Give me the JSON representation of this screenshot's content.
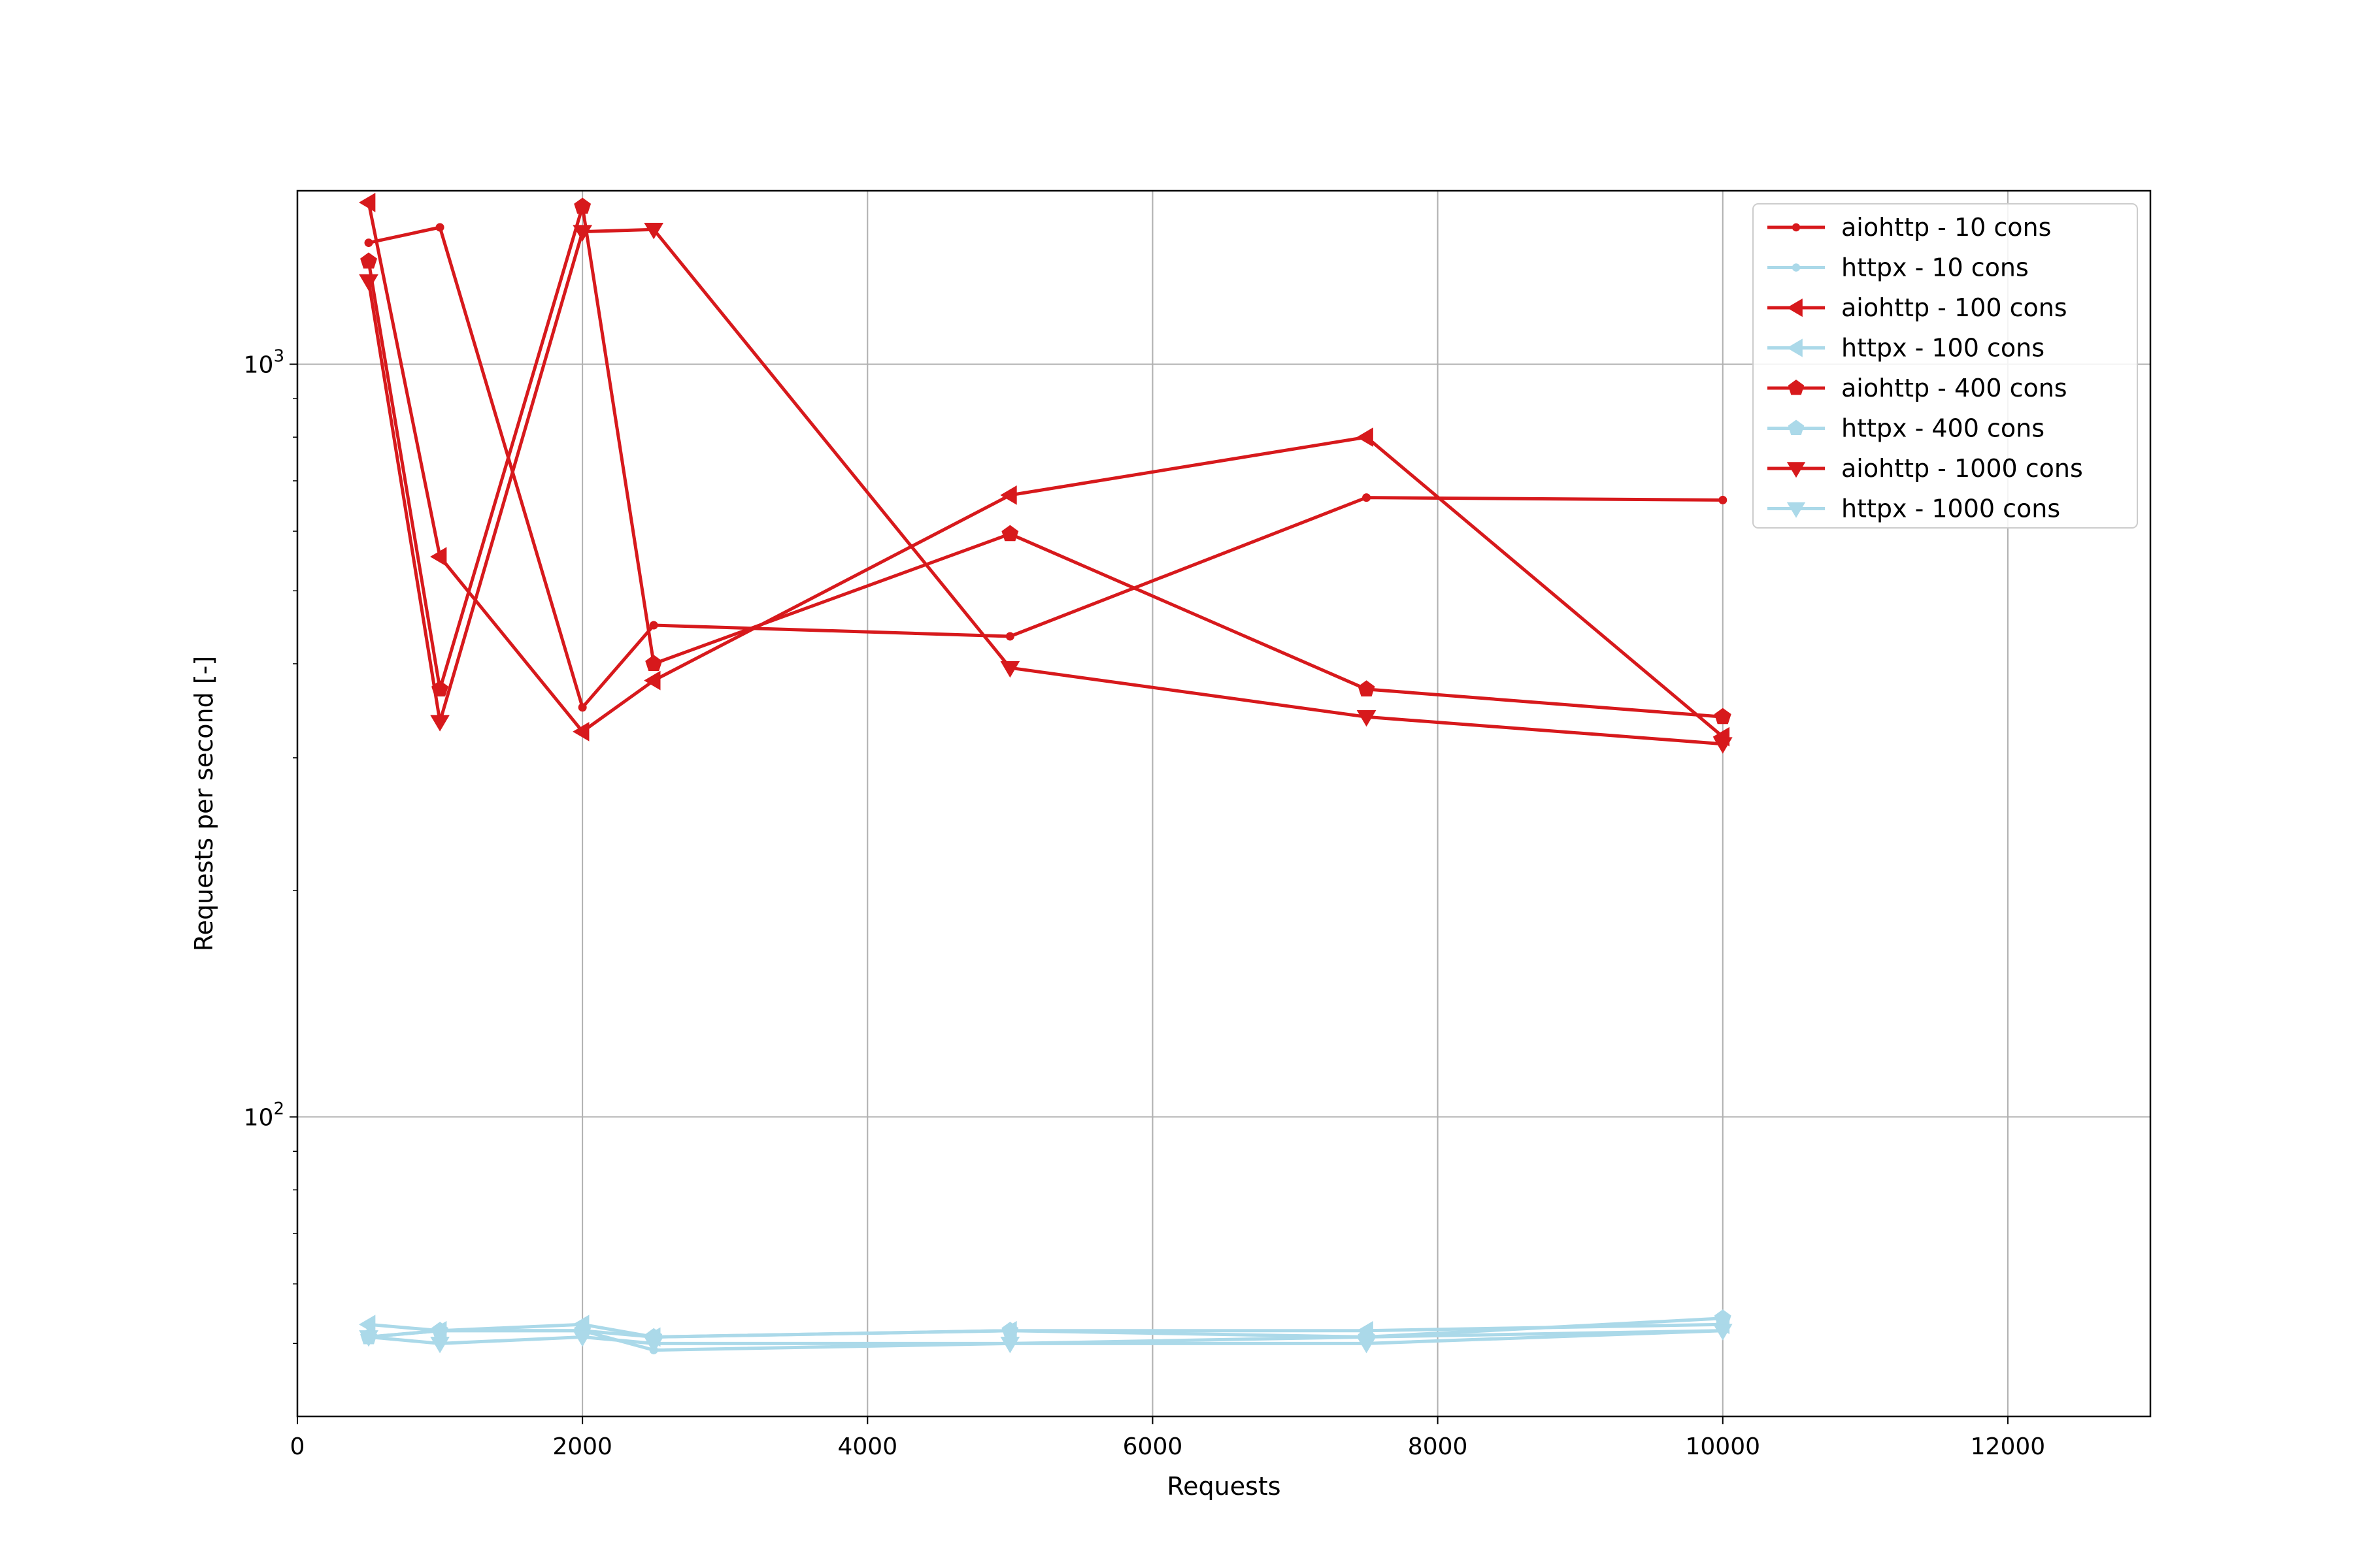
{
  "chart_data": {
    "type": "line",
    "title": "",
    "xlabel": "Requests",
    "ylabel": "Requests per second [-]",
    "xlim": [
      0,
      13000
    ],
    "ylim": [
      40,
      1700
    ],
    "y_scale": "log",
    "grid": true,
    "legend_position": "top-right",
    "x_ticks": [
      {
        "value": 0,
        "label": "0"
      },
      {
        "value": 2000,
        "label": "2000"
      },
      {
        "value": 4000,
        "label": "4000"
      },
      {
        "value": 6000,
        "label": "6000"
      },
      {
        "value": 8000,
        "label": "8000"
      },
      {
        "value": 10000,
        "label": "10000"
      },
      {
        "value": 12000,
        "label": "12000"
      }
    ],
    "y_ticks": [
      {
        "value": 100,
        "base": "10",
        "exp": "2"
      },
      {
        "value": 1000,
        "base": "10",
        "exp": "3"
      }
    ],
    "x": [
      500,
      1000,
      2000,
      2500,
      5000,
      7500,
      10000
    ],
    "series": [
      {
        "name": "aiohttp - 10 cons",
        "color": "#d7191c",
        "marker": "point",
        "values": [
          1450,
          1520,
          350,
          450,
          435,
          665,
          660
        ]
      },
      {
        "name": "httpx - 10 cons",
        "color": "#abd9e9",
        "marker": "point",
        "values": [
          51,
          52,
          52,
          49,
          50,
          51,
          52
        ]
      },
      {
        "name": "aiohttp - 100 cons",
        "color": "#d7191c",
        "marker": "triangle-left",
        "values": [
          1640,
          555,
          325,
          380,
          670,
          800,
          320
        ]
      },
      {
        "name": "httpx - 100 cons",
        "color": "#abd9e9",
        "marker": "triangle-left",
        "values": [
          53,
          52,
          53,
          51,
          52,
          52,
          53
        ]
      },
      {
        "name": "aiohttp - 400 cons",
        "color": "#d7191c",
        "marker": "pentagon",
        "values": [
          1370,
          370,
          1620,
          400,
          595,
          370,
          340
        ]
      },
      {
        "name": "httpx - 400 cons",
        "color": "#abd9e9",
        "marker": "pentagon",
        "values": [
          51,
          52,
          52,
          51,
          52,
          51,
          54
        ]
      },
      {
        "name": "aiohttp - 1000 cons",
        "color": "#d7191c",
        "marker": "triangle-down",
        "values": [
          1290,
          335,
          1500,
          1510,
          395,
          340,
          313
        ]
      },
      {
        "name": "httpx - 1000 cons",
        "color": "#abd9e9",
        "marker": "triangle-down",
        "values": [
          51,
          50,
          51,
          50,
          50,
          50,
          52
        ]
      }
    ]
  }
}
